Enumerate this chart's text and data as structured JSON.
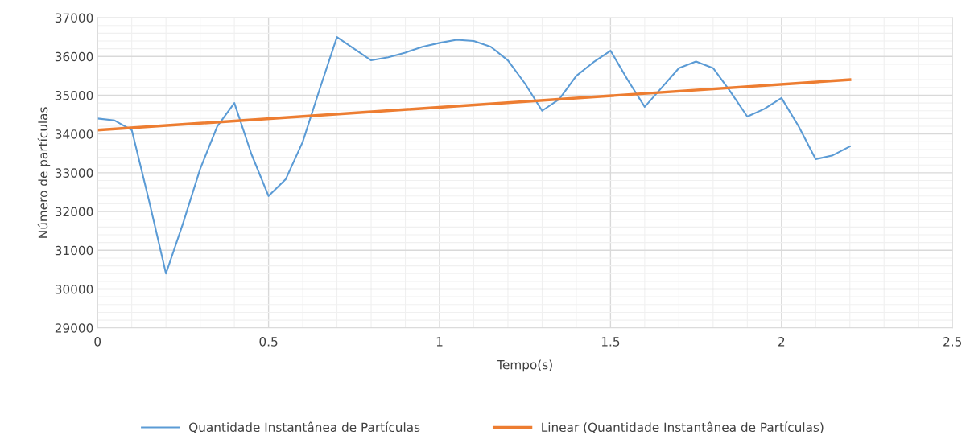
{
  "chart_data": {
    "type": "line",
    "xlabel": "Tempo(s)",
    "ylabel": "Número de partículas",
    "xlim": [
      0,
      2.5
    ],
    "ylim": [
      29000,
      37000
    ],
    "xticks": [
      0,
      0.5,
      1,
      1.5,
      2,
      2.5
    ],
    "yticks": [
      29000,
      30000,
      31000,
      32000,
      33000,
      34000,
      35000,
      36000,
      37000
    ],
    "grid": true,
    "legend": "bottom",
    "marker": "none",
    "line_style": "solid",
    "series": [
      {
        "name": "Quantidade Instantânea de Partículas",
        "color": "#5b9bd5",
        "x": [
          0,
          0.05,
          0.1,
          0.15,
          0.2,
          0.25,
          0.3,
          0.35,
          0.4,
          0.45,
          0.5,
          0.55,
          0.6,
          0.65,
          0.7,
          0.75,
          0.8,
          0.85,
          0.9,
          0.95,
          1.0,
          1.05,
          1.1,
          1.15,
          1.2,
          1.25,
          1.3,
          1.35,
          1.4,
          1.45,
          1.5,
          1.55,
          1.6,
          1.65,
          1.7,
          1.75,
          1.8,
          1.85,
          1.9,
          1.95,
          2.0,
          2.05,
          2.1,
          2.15,
          2.2
        ],
        "values": [
          34400,
          34350,
          34100,
          32300,
          30400,
          31700,
          33100,
          34200,
          34800,
          33480,
          32400,
          32830,
          33800,
          35170,
          36500,
          36200,
          35900,
          35980,
          36100,
          36250,
          36350,
          36430,
          36400,
          36250,
          35900,
          35300,
          34600,
          34900,
          35500,
          35850,
          36150,
          35400,
          34700,
          35200,
          35700,
          35870,
          35700,
          35100,
          34450,
          34650,
          34930,
          34200,
          33350,
          33450,
          33680
        ]
      },
      {
        "name": "Linear (Quantidade Instantânea de Partículas)",
        "type": "line",
        "color": "#ed7d31",
        "x": [
          0,
          2.2
        ],
        "values": [
          34100,
          35400
        ]
      }
    ]
  }
}
